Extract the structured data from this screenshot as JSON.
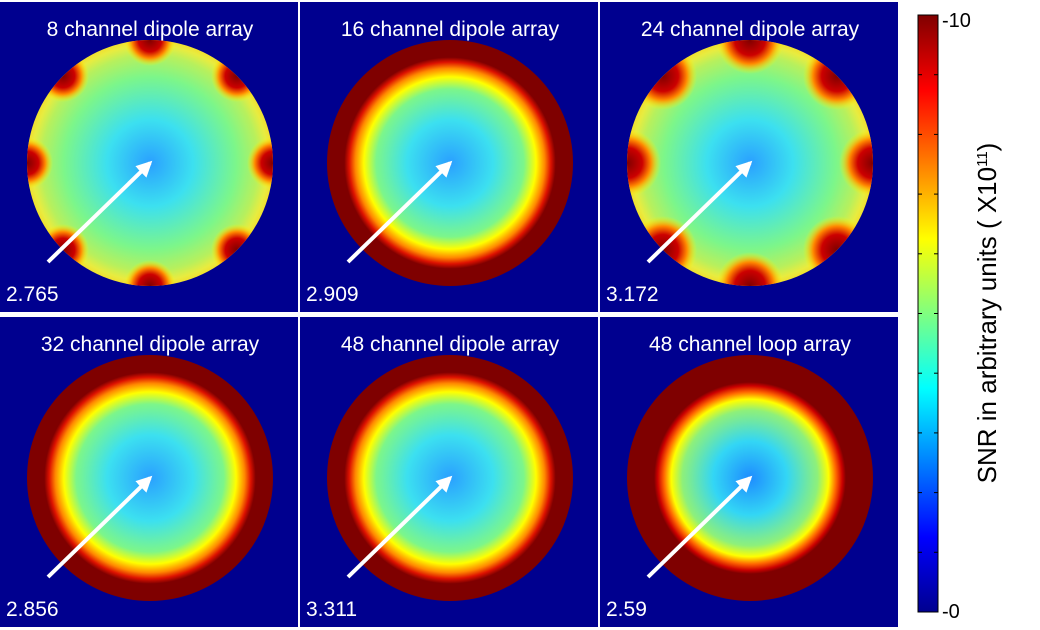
{
  "chart_data": {
    "type": "heatmap",
    "colormap": "jet",
    "grid": false,
    "legend": "right",
    "colorbar": {
      "label_main": "SNR in arbitrary units ( X10",
      "label_exp": "11",
      "label_close": ")",
      "top_label": "-10",
      "bottom_label": "-0",
      "range": [
        0,
        10
      ]
    },
    "panels": [
      {
        "title": "8 channel dipole array",
        "value": "2.765",
        "elements": 8,
        "kind": "dipole"
      },
      {
        "title": "16 channel dipole array",
        "value": "2.909",
        "elements": 16,
        "kind": "dipole"
      },
      {
        "title": "24 channel dipole array",
        "value": "3.172",
        "elements": 24,
        "kind": "dipole"
      },
      {
        "title": "32 channel dipole array",
        "value": "2.856",
        "elements": 32,
        "kind": "dipole"
      },
      {
        "title": "48 channel dipole array",
        "value": "3.311",
        "elements": 48,
        "kind": "dipole"
      },
      {
        "title": "48 channel loop array",
        "value": "2.59",
        "elements": 48,
        "kind": "loop"
      }
    ],
    "colors": {
      "background": "#00008f",
      "rim": "#7f0000",
      "arrow": "#ffffff"
    }
  }
}
